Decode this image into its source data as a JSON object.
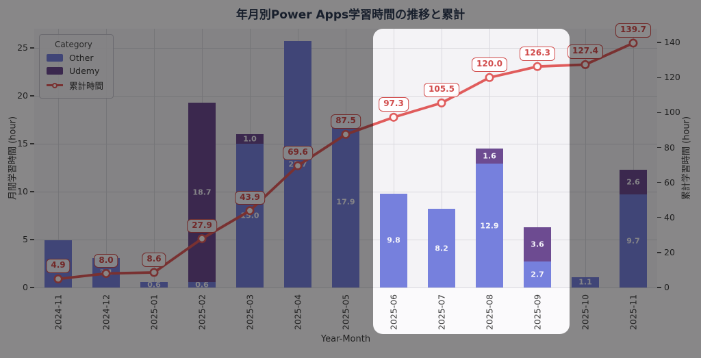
{
  "chart_data": {
    "type": "bar",
    "variant": "stacked-bars-with-cumulative-line",
    "title": "年月別Power Apps学習時間の推移と累計",
    "xlabel": "Year-Month",
    "ylabel_left": "月間学習時間 (hour)",
    "ylabel_right": "累計学習時間 (hour)",
    "categories": [
      "2024-11",
      "2024-12",
      "2025-01",
      "2025-02",
      "2025-03",
      "2025-04",
      "2025-05",
      "2025-06",
      "2025-07",
      "2025-08",
      "2025-09",
      "2025-10",
      "2025-11"
    ],
    "series": [
      {
        "name": "Other",
        "color": "#7680dd",
        "values": [
          4.9,
          3.1,
          0.6,
          0.6,
          15.0,
          25.7,
          17.9,
          9.8,
          8.2,
          12.9,
          2.7,
          1.1,
          9.7
        ]
      },
      {
        "name": "Udemy",
        "color": "#6d4b91",
        "values": [
          0,
          0,
          0,
          18.7,
          1.0,
          0,
          0,
          0,
          0,
          1.6,
          3.6,
          0,
          2.6
        ]
      }
    ],
    "line_series": {
      "name": "累計時間",
      "color": "#e05c5c",
      "values": [
        4.9,
        8.0,
        8.6,
        27.9,
        43.9,
        69.6,
        87.5,
        97.3,
        105.5,
        120.0,
        126.3,
        127.4,
        139.7
      ]
    },
    "yticks_left": [
      0,
      5,
      10,
      15,
      20,
      25
    ],
    "yticks_right": [
      0,
      20,
      40,
      60,
      80,
      100,
      120,
      140
    ],
    "ylim_left": [
      0,
      27
    ],
    "ylim_right": [
      0,
      147.9
    ],
    "legend": {
      "title": "Category"
    },
    "highlight": {
      "from": "2025-06",
      "to": "2025-09"
    },
    "colors": {
      "figure_bg": "#fbfafc",
      "plot_bg": "#f4f3f6",
      "grid": "#d9d8de",
      "title": "#2e3a52",
      "tick": "#3d3d3d",
      "annotation": "#d14b4b",
      "marker_fill": "#fdf6f6",
      "dim_overlay": "rgba(0,0,0,0.46)"
    }
  }
}
